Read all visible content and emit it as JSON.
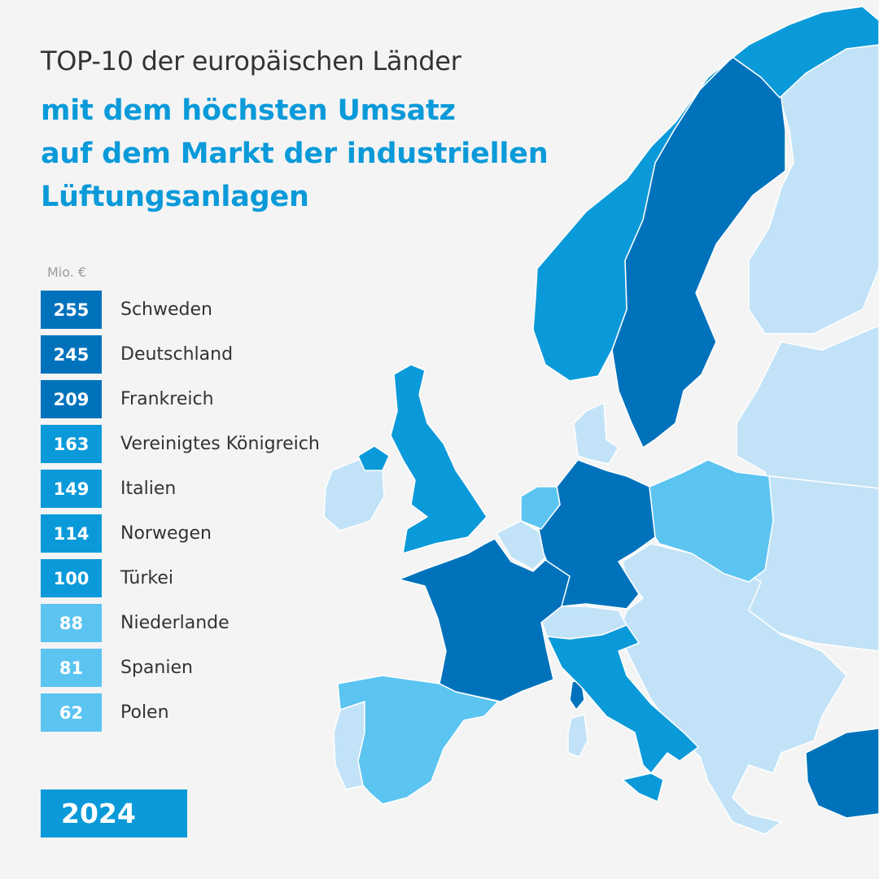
{
  "title": {
    "line1": "TOP-10 der europäischen Länder",
    "headline": [
      "mit dem höchsten Umsatz",
      "auf dem Markt der industriellen",
      "Lüftungsanlagen"
    ]
  },
  "unit": "Mio. €",
  "year": "2024",
  "colors": {
    "background": "#f4f4f4",
    "dark": "#0072bc",
    "medium": "#0b9ad9",
    "light": "#5bc4f1",
    "other_country": "#c2e3f7",
    "border": "#ffffff"
  },
  "ranking": [
    {
      "value": "255",
      "country": "Schweden",
      "color": "#0072bc"
    },
    {
      "value": "245",
      "country": "Deutschland",
      "color": "#0072bc"
    },
    {
      "value": "209",
      "country": "Frankreich",
      "color": "#0072bc"
    },
    {
      "value": "163",
      "country": "Vereinigtes Königreich",
      "color": "#0b9ad9"
    },
    {
      "value": "149",
      "country": "Italien",
      "color": "#0b9ad9"
    },
    {
      "value": "114",
      "country": "Norwegen",
      "color": "#0b9ad9"
    },
    {
      "value": "100",
      "country": "Türkei",
      "color": "#0b9ad9"
    },
    {
      "value": "88",
      "country": "Niederlande",
      "color": "#5bc4f1"
    },
    {
      "value": "81",
      "country": "Spanien",
      "color": "#5bc4f1"
    },
    {
      "value": "62",
      "country": "Polen",
      "color": "#5bc4f1"
    }
  ]
}
